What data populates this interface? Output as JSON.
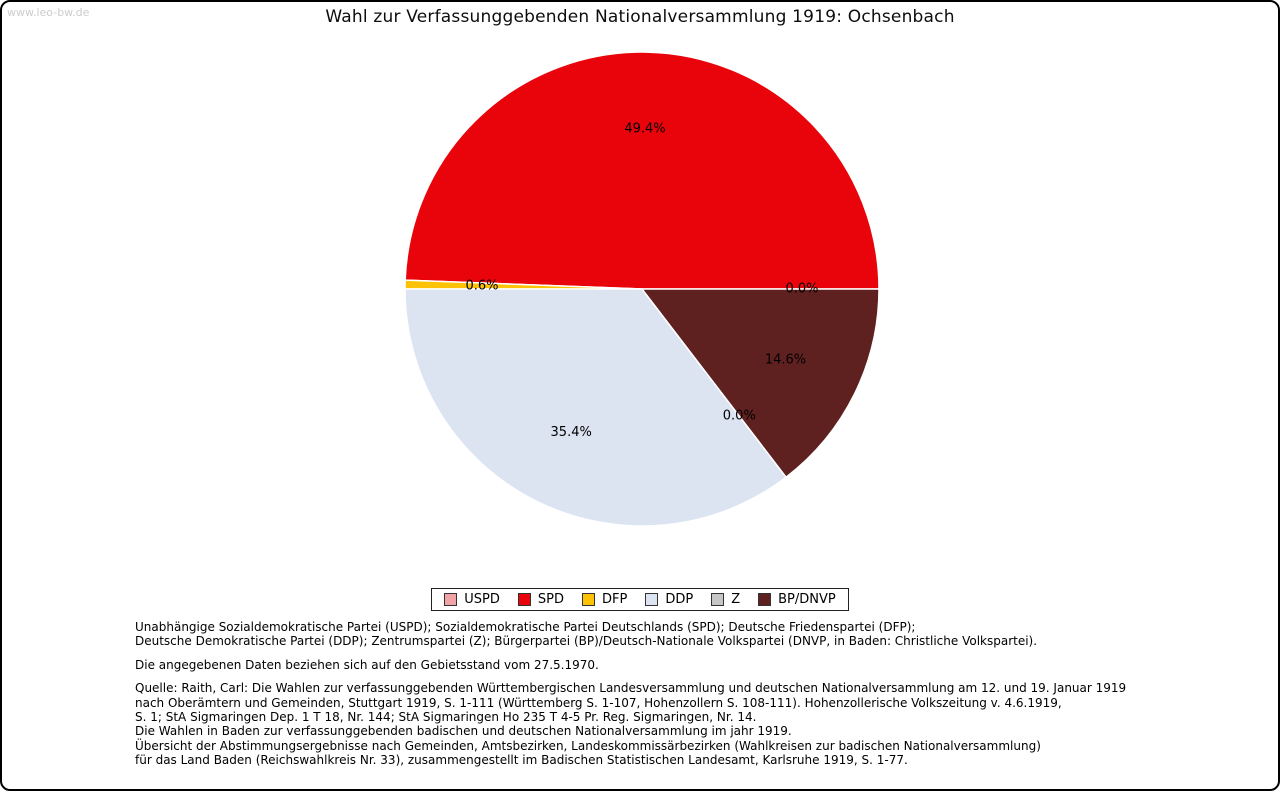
{
  "watermark": {
    "text": "www.leo-bw.de"
  },
  "header": {
    "title": "Wahl zur Verfassunggebenden Nationalversammlung 1919: Ochsenbach"
  },
  "chart_data": {
    "type": "pie",
    "title": "Wahl zur Verfassunggebenden Nationalversammlung 1919: Ochsenbach",
    "unit": "%",
    "start_angle_deg": 0,
    "direction": "counterclockwise",
    "legend_position": "bottom",
    "slices": [
      {
        "label": "USPD",
        "value": 0.0,
        "display": "0.0%",
        "color": "#f2a3a6"
      },
      {
        "label": "SPD",
        "value": 49.4,
        "display": "49.4%",
        "color": "#e8040a"
      },
      {
        "label": "DFP",
        "value": 0.6,
        "display": "0.6%",
        "color": "#fcc203"
      },
      {
        "label": "DDP",
        "value": 35.4,
        "display": "35.4%",
        "color": "#dce4f2"
      },
      {
        "label": "Z",
        "value": 0.0,
        "display": "0.0%",
        "color": "#c6c6c6"
      },
      {
        "label": "BP/DNVP",
        "value": 14.6,
        "display": "14.6%",
        "color": "#5e2120"
      }
    ]
  },
  "footer": {
    "paragraphs": [
      {
        "lines": [
          "Unabhängige Sozialdemokratische Partei (USPD); Sozialdemokratische Partei Deutschlands (SPD); Deutsche Friedenspartei (DFP);",
          "Deutsche Demokratische Partei (DDP); Zentrumspartei (Z); Bürgerpartei (BP)/Deutsch-Nationale Volkspartei (DNVP, in Baden: Christliche Volkspartei)."
        ]
      },
      {
        "lines": [
          "Die angegebenen Daten beziehen sich auf den Gebietsstand vom 27.5.1970."
        ]
      },
      {
        "lines": [
          "Quelle: Raith, Carl: Die Wahlen zur verfassunggebenden Württembergischen Landesversammlung und deutschen Nationalversammlung am 12. und 19. Januar 1919",
          "nach Oberämtern und Gemeinden, Stuttgart 1919, S. 1-111 (Württemberg S. 1-107, Hohenzollern S. 108-111). Hohenzollerische Volkszeitung v. 4.6.1919,",
          "S. 1; StA Sigmaringen Dep. 1 T 18, Nr. 144; StA Sigmaringen Ho 235 T 4-5 Pr. Reg. Sigmaringen, Nr. 14.",
          "Die Wahlen in Baden zur verfassunggebenden badischen und deutschen Nationalversammlung im jahr 1919.",
          "Übersicht der Abstimmungsergebnisse nach Gemeinden, Amtsbezirken, Landeskommissärbezirken (Wahlkreisen zur badischen Nationalversammlung)",
          "für das Land Baden (Reichswahlkreis Nr. 33), zusammengestellt im Badischen Statistischen Landesamt, Karlsruhe 1919, S. 1-77."
        ]
      }
    ]
  }
}
